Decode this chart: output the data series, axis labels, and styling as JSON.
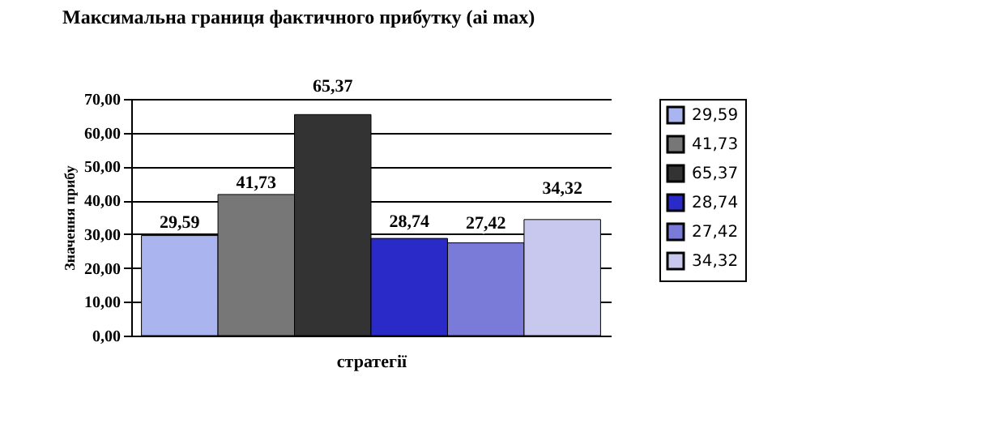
{
  "chart_data": {
    "type": "bar",
    "title": "Максимальна границя фактичного прибутку (ai max)",
    "xlabel": "стратегії",
    "ylabel": "Значення прибу",
    "categories": [
      null
    ],
    "series": [
      {
        "name": "29,59",
        "color": "#aab4ee",
        "values": [
          29.59
        ],
        "value_labels": [
          "29,59"
        ]
      },
      {
        "name": "41,73",
        "color": "#777777",
        "values": [
          41.73
        ],
        "value_labels": [
          "41,73"
        ]
      },
      {
        "name": "65,37",
        "color": "#333333",
        "values": [
          65.37
        ],
        "value_labels": [
          "65,37"
        ]
      },
      {
        "name": "28,74",
        "color": "#2a2ac8",
        "values": [
          28.74
        ],
        "value_labels": [
          "28,74"
        ]
      },
      {
        "name": "27,42",
        "color": "#7a7ad8",
        "values": [
          27.42
        ],
        "value_labels": [
          "27,42"
        ]
      },
      {
        "name": "34,32",
        "color": "#c8c8ee",
        "values": [
          34.32
        ],
        "value_labels": [
          "34,32"
        ]
      }
    ],
    "ylim": [
      0,
      70
    ],
    "yticks": [
      {
        "value": 0,
        "label": "0,00"
      },
      {
        "value": 10,
        "label": "10,00"
      },
      {
        "value": 20,
        "label": "20,00"
      },
      {
        "value": 30,
        "label": "30,00"
      },
      {
        "value": 40,
        "label": "40,00"
      },
      {
        "value": 50,
        "label": "50,00"
      },
      {
        "value": 60,
        "label": "60,00"
      },
      {
        "value": 70,
        "label": "70,00"
      }
    ],
    "grid": "y",
    "legend": "right"
  }
}
